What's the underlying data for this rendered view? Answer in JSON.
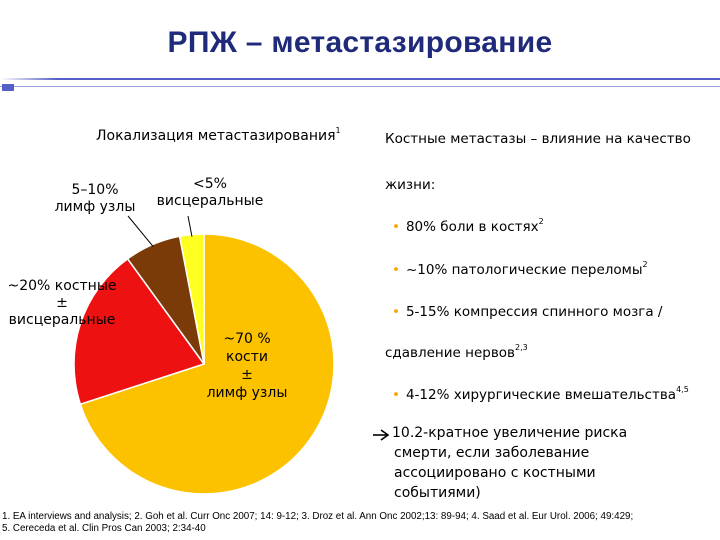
{
  "title": "РПЖ – метастазирование",
  "colors": {
    "title": "#1f2a7a",
    "accent_blue": "#5460c8",
    "bullet": "#f2a900",
    "slice_bones": "#fcc200",
    "slice_bones_visceral": "#ee1111",
    "slice_lymph": "#7a3b08",
    "slice_visceral": "#ffff22"
  },
  "left": {
    "heading": "Локализация метастазирования",
    "heading_sup": "1",
    "labels": {
      "lymph_line1": "5–10%",
      "lymph_line2": "лимф узлы",
      "visceral_line1": "<5%",
      "visceral_line2": "висцеральные",
      "bones_visc_line1": "~20% костные",
      "bones_visc_line2": "±",
      "bones_visc_line3": "висцеральные",
      "bones_line1": "~70 %",
      "bones_line2": "кости",
      "bones_line3": "±",
      "bones_line4": "лимф узлы"
    }
  },
  "chart_data": {
    "type": "pie",
    "slices": [
      {
        "label": "~70 % кости ± лимф узлы",
        "value": 70
      },
      {
        "label": "~20% костные ± висцеральные",
        "value": 20
      },
      {
        "label": "5–10% лимф узлы",
        "value": 7
      },
      {
        "label": "<5% висцеральные",
        "value": 3
      }
    ]
  },
  "right": {
    "heading_line1": "Костные метастазы – влияние на качество",
    "heading_line2": "жизни:",
    "bullets": [
      {
        "text": "80% боли в костях",
        "sup": "2"
      },
      {
        "text": "~10% патологические переломы",
        "sup": "2"
      },
      {
        "text": "5-15% компрессия спинного мозга /",
        "sup": ""
      },
      {
        "text": "4-12% хирургические вмешательства",
        "sup": "4,5"
      }
    ],
    "continuation": "сдавление нервов",
    "continuation_sup": "2,3",
    "arrow_line1": "10.2-кратное увеличение риска",
    "arrow_line2": "смерти, если заболевание",
    "arrow_line3": "ассоциировано с костными",
    "arrow_line4": "событиями)"
  },
  "footnote": {
    "line1": "1. EA interviews and analysis; 2. Goh et al. Curr Onc 2007; 14: 9-12; 3. Droz et al. Ann Onc 2002;13: 89-94; 4. Saad et al. Eur Urol. 2006; 49:429;",
    "line2": "5. Cereceda et al. Clin Pros Can 2003; 2:34-40"
  }
}
